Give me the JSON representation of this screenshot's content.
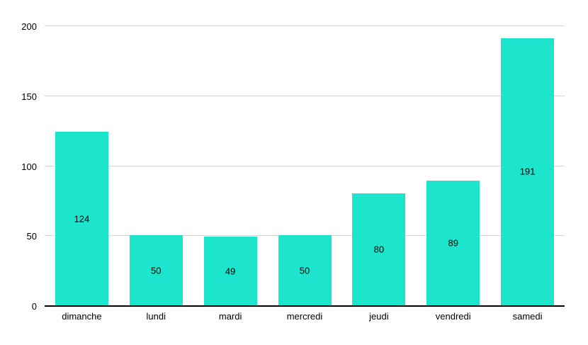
{
  "chart_data": {
    "type": "bar",
    "title": "",
    "xlabel": "",
    "ylabel": "",
    "categories": [
      "dimanche",
      "lundi",
      "mardi",
      "mercredi",
      "jeudi",
      "vendredi",
      "samedi"
    ],
    "values": [
      124,
      50,
      49,
      50,
      80,
      89,
      191
    ],
    "ylim": [
      0,
      200
    ],
    "yticks": [
      0,
      50,
      100,
      150,
      200
    ],
    "grid": true,
    "legend": "none",
    "value_labels_position": "inside-center",
    "colors": {
      "bar": "#1de4cd",
      "gridline": "#d6d6d6",
      "axis_line": "#000000",
      "text": "#000000",
      "background": "#ffffff"
    }
  }
}
